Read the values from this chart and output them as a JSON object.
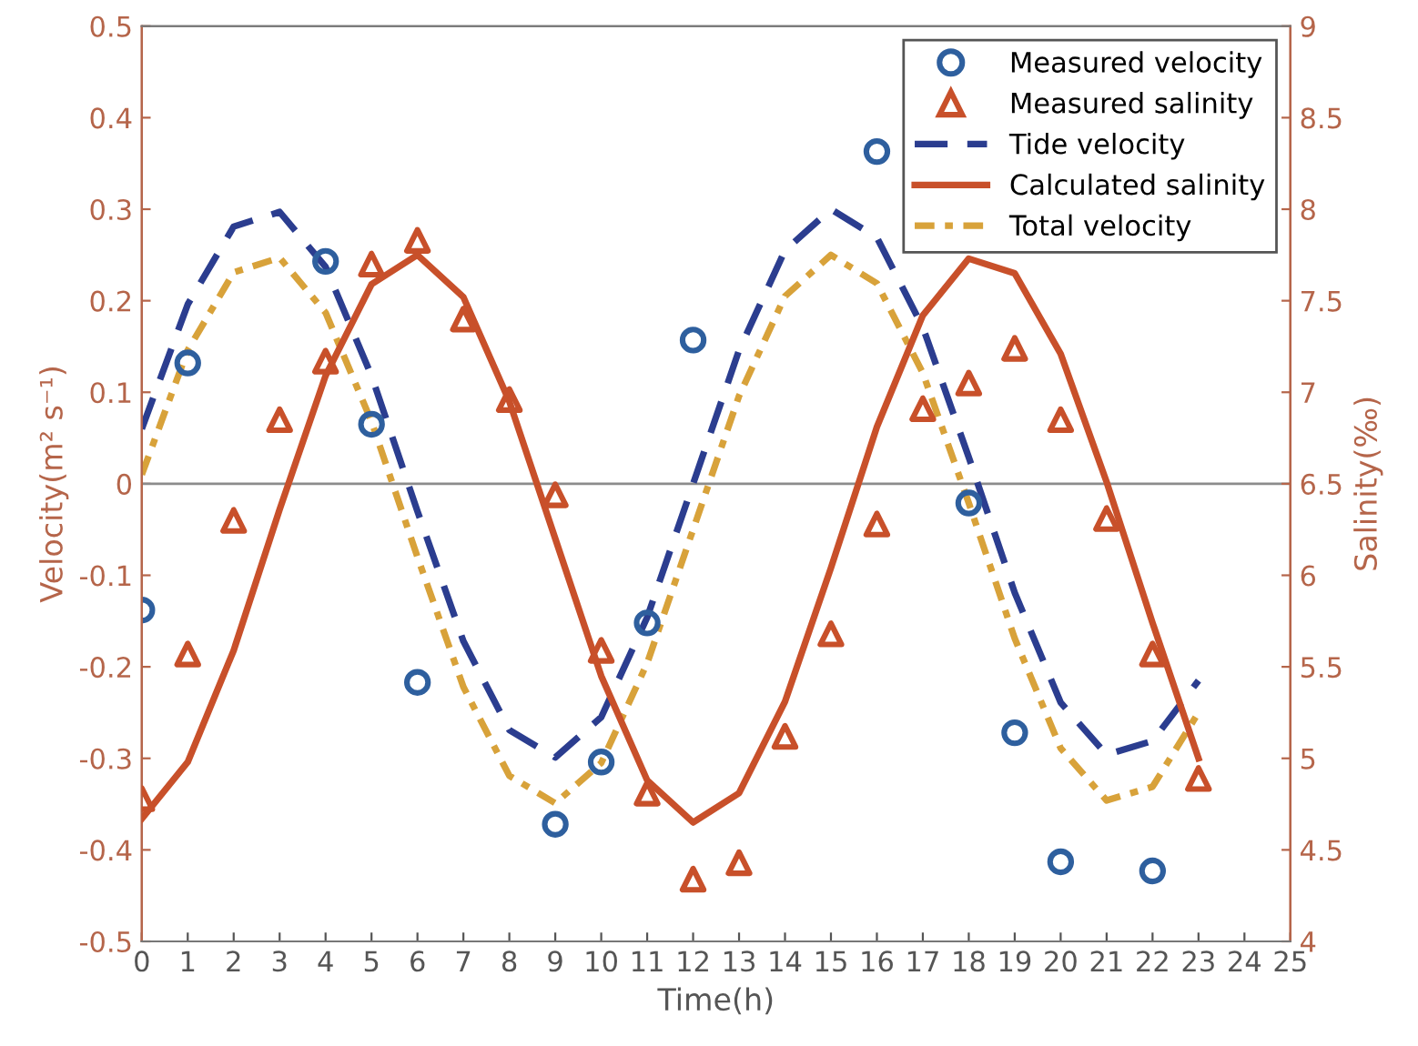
{
  "chart_data": {
    "type": "line",
    "xlabel": "Time(h)",
    "ylabel": "Velocity(m² s⁻¹)",
    "y2label": "Salinity(‰)",
    "xlim": [
      0,
      25
    ],
    "xticks": [
      0,
      1,
      2,
      3,
      4,
      5,
      6,
      7,
      8,
      9,
      10,
      11,
      12,
      13,
      14,
      15,
      16,
      17,
      18,
      19,
      20,
      21,
      22,
      23,
      24,
      25
    ],
    "ylim": [
      -0.5,
      0.5
    ],
    "yticks": [
      {
        "value": -0.5,
        "label": "-0.5"
      },
      {
        "value": -0.4,
        "label": "-0.4"
      },
      {
        "value": -0.3,
        "label": "-0.3"
      },
      {
        "value": -0.2,
        "label": "-0.2"
      },
      {
        "value": -0.1,
        "label": "-0.1"
      },
      0,
      0.1,
      0.2,
      0.3,
      0.4,
      0.5
    ],
    "y2lim": [
      4,
      9
    ],
    "y2ticks": [
      4,
      4.5,
      5,
      5.5,
      6,
      6.5,
      7,
      7.5,
      8,
      8.5,
      9
    ],
    "grid": false,
    "legend": "top right",
    "ref_lines": [
      {
        "axis": "y",
        "value": 0,
        "color": "#8c8c8c"
      }
    ],
    "series": [
      {
        "name": "Measured velocity",
        "type": "scatter",
        "marker": "circle",
        "color": "#2e5f9e",
        "x": [
          0,
          1,
          4,
          5,
          6,
          9,
          10,
          11,
          12,
          16,
          18,
          19,
          20,
          22
        ],
        "values": [
          -0.138,
          0.132,
          0.243,
          0.065,
          -0.217,
          -0.372,
          -0.304,
          -0.152,
          0.157,
          0.363,
          -0.021,
          -0.272,
          -0.413,
          -0.423
        ]
      },
      {
        "name": "Measured salinity",
        "type": "scatter",
        "marker": "triangle",
        "axis": "y2",
        "color": "#c8502a",
        "x": [
          0,
          1,
          2,
          3,
          4,
          5,
          6,
          7,
          8,
          9,
          10,
          11,
          12,
          13,
          14,
          15,
          16,
          17,
          18,
          19,
          20,
          21,
          22,
          23
        ],
        "values": [
          4.78,
          5.57,
          6.3,
          6.85,
          7.17,
          7.7,
          7.83,
          7.4,
          6.96,
          6.44,
          5.59,
          4.81,
          4.34,
          4.43,
          5.12,
          5.68,
          6.28,
          6.91,
          7.05,
          7.24,
          6.85,
          6.31,
          5.57,
          4.89
        ]
      },
      {
        "name": "Tide velocity",
        "line_style": "dashed",
        "color": "#2b3d8f",
        "x": [
          0,
          1,
          2,
          3,
          4,
          5,
          6,
          7,
          8,
          9,
          10,
          11,
          12,
          13,
          14,
          15,
          16,
          17,
          18,
          19,
          20,
          21,
          22,
          23
        ],
        "values": [
          0.06,
          0.196,
          0.281,
          0.297,
          0.237,
          0.118,
          -0.03,
          -0.172,
          -0.269,
          -0.299,
          -0.255,
          -0.146,
          0.0,
          0.146,
          0.255,
          0.3,
          0.269,
          0.171,
          0.029,
          -0.119,
          -0.239,
          -0.296,
          -0.281,
          -0.215
        ]
      },
      {
        "name": "Calculated salinity",
        "line_style": "solid",
        "axis": "y2",
        "color": "#c8502a",
        "x": [
          0,
          1,
          2,
          3,
          4,
          5,
          6,
          7,
          8,
          9,
          10,
          11,
          12,
          13,
          14,
          15,
          16,
          17,
          18,
          19,
          20,
          21,
          22,
          23
        ],
        "values": [
          4.67,
          4.98,
          5.59,
          6.36,
          7.09,
          7.59,
          7.75,
          7.52,
          6.95,
          6.2,
          5.45,
          4.88,
          4.65,
          4.81,
          5.31,
          6.04,
          6.81,
          7.42,
          7.73,
          7.65,
          7.21,
          6.51,
          5.74,
          5.0
        ]
      },
      {
        "name": "Total velocity",
        "line_style": "dotted",
        "color": "#d8a23a",
        "x": [
          0,
          1,
          2,
          3,
          4,
          5,
          6,
          7,
          8,
          9,
          10,
          11,
          12,
          13,
          14,
          15,
          16,
          17,
          18,
          19,
          20,
          21,
          22,
          23
        ],
        "values": [
          0.01,
          0.146,
          0.231,
          0.247,
          0.187,
          0.068,
          -0.08,
          -0.222,
          -0.319,
          -0.349,
          -0.305,
          -0.196,
          -0.05,
          0.096,
          0.205,
          0.25,
          0.219,
          0.121,
          -0.021,
          -0.169,
          -0.289,
          -0.346,
          -0.331,
          -0.25
        ]
      }
    ]
  }
}
